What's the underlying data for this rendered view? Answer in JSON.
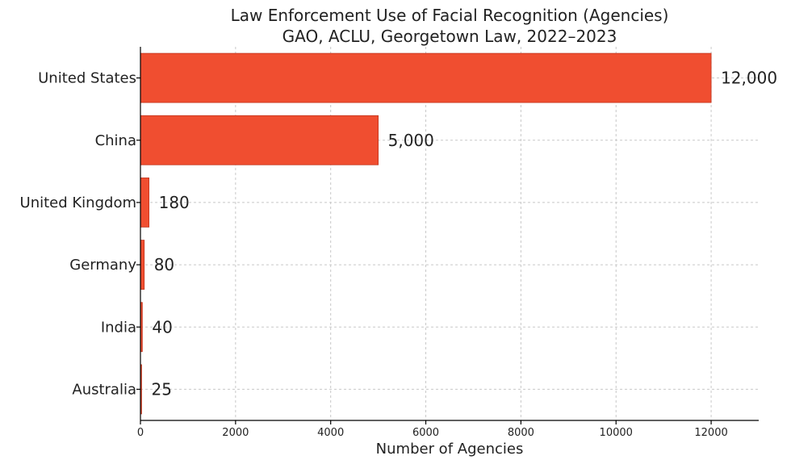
{
  "chart_data": {
    "type": "bar",
    "orientation": "horizontal",
    "title": "Law Enforcement Use of Facial Recognition (Agencies)",
    "subtitle": "GAO, ACLU, Georgetown Law, 2022–2023",
    "xlabel": "Number of Agencies",
    "ylabel": "",
    "categories": [
      "United States",
      "China",
      "United Kingdom",
      "Germany",
      "India",
      "Australia"
    ],
    "values": [
      12000,
      5000,
      180,
      80,
      40,
      25
    ],
    "value_labels": [
      "12,000",
      "5,000",
      "180",
      "80",
      "40",
      "25"
    ],
    "xlim": [
      0,
      13000
    ],
    "xticks": [
      0,
      2000,
      4000,
      6000,
      8000,
      10000,
      12000
    ],
    "xtick_labels": [
      "0",
      "2000",
      "4000",
      "6000",
      "8000",
      "10000",
      "12000"
    ],
    "grid": true,
    "colors": {
      "bar": "#f04e30",
      "bar_edge": "#c0341d"
    }
  }
}
